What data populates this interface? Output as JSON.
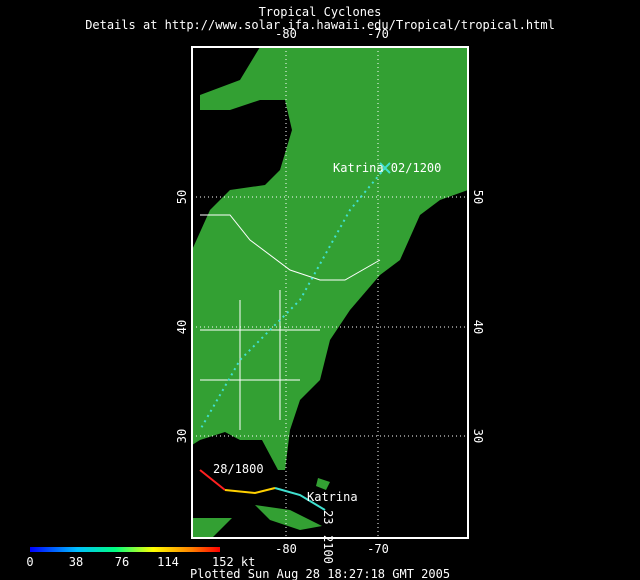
{
  "header": {
    "title": "Tropical Cyclones",
    "subtitle": "Details at http://www.solar.ifa.hawaii.edu/Tropical/tropical.html"
  },
  "map": {
    "lon_ticks": [
      "-80",
      "-70"
    ],
    "lat_ticks": [
      "50",
      "40",
      "30"
    ],
    "labels": [
      "Katrina 02/1200",
      "28/1800",
      "Katrina",
      "23",
      "2100"
    ]
  },
  "colorbar": {
    "labels": [
      "0",
      "38",
      "76",
      "114",
      "152 kt"
    ]
  },
  "footer": "Plotted Sun Aug 28 18:27:18 GMT 2005"
}
